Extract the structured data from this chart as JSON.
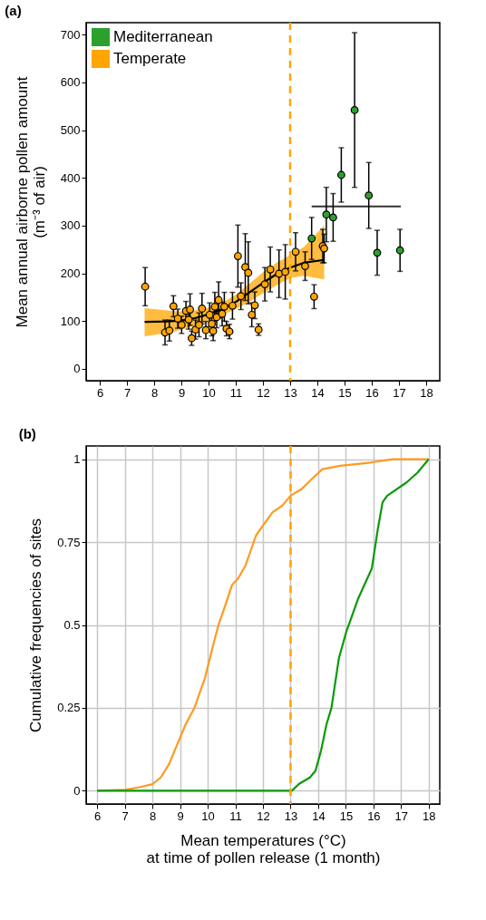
{
  "chart_data": [
    {
      "type": "scatter",
      "title": "(a)",
      "ylabel": "Mean annual airborne pollen amount\n(m⁻³ of air)",
      "xlim": [
        5.5,
        18.5
      ],
      "xticks": [
        6,
        7,
        8,
        9,
        10,
        11,
        12,
        13,
        14,
        15,
        16,
        17,
        18
      ],
      "ylim": [
        -25,
        725
      ],
      "yticks": [
        0,
        100,
        200,
        300,
        400,
        500,
        600,
        700
      ],
      "grid": false,
      "legend": "top left",
      "marker": "circle",
      "series": [
        {
          "type": "line",
          "marker": "none",
          "color": "#000000",
          "x": [
            7.65,
            8.5,
            9,
            9.5,
            10,
            10.5,
            11,
            11.5,
            12,
            12.5,
            13,
            13.5,
            14.25
          ],
          "values": [
            98,
            99,
            101,
            106,
            114,
            125,
            140,
            160,
            180,
            198,
            212,
            222,
            228
          ],
          "lower": [
            68,
            75,
            82,
            90,
            100,
            112,
            125,
            140,
            158,
            175,
            190,
            195,
            187
          ],
          "upper": [
            127,
            122,
            120,
            122,
            128,
            138,
            155,
            178,
            202,
            222,
            238,
            255,
            300
          ]
        },
        {
          "type": "line",
          "marker": "none",
          "color": "#333333",
          "x": [
            13.79,
            17.07
          ],
          "values": [
            340,
            340
          ]
        },
        {
          "name": "Mediterranean",
          "color": "#2ca02c",
          "x": [
            13.79,
            14.33,
            14.58,
            14.88,
            15.37,
            15.89,
            16.2,
            17.04
          ],
          "values": [
            273,
            323,
            317,
            406,
            542,
            363,
            243,
            248
          ],
          "errors": [
            44,
            57,
            50,
            57,
            162,
            69,
            47,
            44
          ]
        },
        {
          "name": "Temperate",
          "color": "#ffa500",
          "x": [
            7.67,
            8.4,
            8.56,
            8.71,
            8.87,
            9.01,
            9.17,
            9.27,
            9.32,
            9.38,
            9.52,
            9.65,
            9.76,
            9.9,
            10.04,
            10.12,
            10.17,
            10.23,
            10.3,
            10.37,
            10.5,
            10.58,
            10.66,
            10.77,
            10.88,
            11.08,
            11.19,
            11.35,
            11.46,
            11.59,
            11.7,
            11.84,
            12.07,
            12.27,
            12.59,
            12.82,
            13.2,
            13.55,
            13.88,
            14.2,
            14.25
          ],
          "values": [
            172,
            76,
            80,
            131,
            105,
            92,
            121,
            103,
            124,
            64,
            82,
            92,
            126,
            81,
            113,
            94,
            79,
            130,
            108,
            144,
            115,
            130,
            84,
            78,
            132,
            236,
            152,
            213,
            201,
            113,
            133,
            82,
            177,
            208,
            199,
            203,
            245,
            215,
            151,
            257,
            252
          ],
          "errors": [
            40,
            26,
            22,
            22,
            20,
            18,
            20,
            20,
            33,
            15,
            20,
            25,
            32,
            18,
            25,
            25,
            20,
            30,
            22,
            38,
            25,
            30,
            15,
            15,
            28,
            65,
            28,
            70,
            65,
            25,
            28,
            12,
            35,
            47,
            50,
            57,
            40,
            30,
            25,
            35,
            30
          ]
        }
      ],
      "ref_lines": [
        {
          "axis": "x",
          "value": 13,
          "color": "#ffa500",
          "line_style": "dashed"
        }
      ]
    },
    {
      "type": "line",
      "title": "(b)",
      "xlabel": "Mean temperatures (°C)\nat time of pollen release (1 month)",
      "ylabel": "Cumulative frequencies of sites",
      "xlim": [
        5.6,
        18.4
      ],
      "xticks": [
        6,
        7,
        8,
        9,
        10,
        11,
        12,
        13,
        14,
        15,
        16,
        17,
        18
      ],
      "ylim": [
        -0.04,
        1.04
      ],
      "yticks": [
        0,
        0.25,
        0.5,
        0.75,
        1
      ],
      "grid": true,
      "legend": false,
      "series": [
        {
          "color": "#ff9a1f",
          "x": [
            6,
            7,
            7.5,
            8,
            8.3,
            8.6,
            8.9,
            9.2,
            9.52,
            9.9,
            10.2,
            10.39,
            10.6,
            10.88,
            11.1,
            11.37,
            11.75,
            12,
            12.35,
            12.7,
            13,
            13.4,
            13.77,
            14.15,
            14.8,
            15.9,
            16.7,
            18
          ],
          "values": [
            0,
            0.003,
            0.01,
            0.02,
            0.04,
            0.08,
            0.14,
            0.2,
            0.25,
            0.34,
            0.44,
            0.5,
            0.55,
            0.62,
            0.64,
            0.68,
            0.77,
            0.8,
            0.84,
            0.86,
            0.89,
            0.91,
            0.94,
            0.97,
            0.98,
            0.99,
            1,
            1
          ]
        },
        {
          "color": "#0a9a0a",
          "x": [
            6,
            13.05,
            13.3,
            13.7,
            13.9,
            14.1,
            14.3,
            14.48,
            14.75,
            15.02,
            15.45,
            15.94,
            16.16,
            16.33,
            16.5,
            17.2,
            17.6,
            18
          ],
          "values": [
            0,
            0,
            0.02,
            0.04,
            0.06,
            0.12,
            0.2,
            0.25,
            0.4,
            0.48,
            0.58,
            0.67,
            0.79,
            0.87,
            0.89,
            0.93,
            0.96,
            1
          ]
        }
      ],
      "ref_lines": [
        {
          "axis": "x",
          "value": 13,
          "color": "#ffa500",
          "line_style": "dashed"
        }
      ]
    }
  ]
}
